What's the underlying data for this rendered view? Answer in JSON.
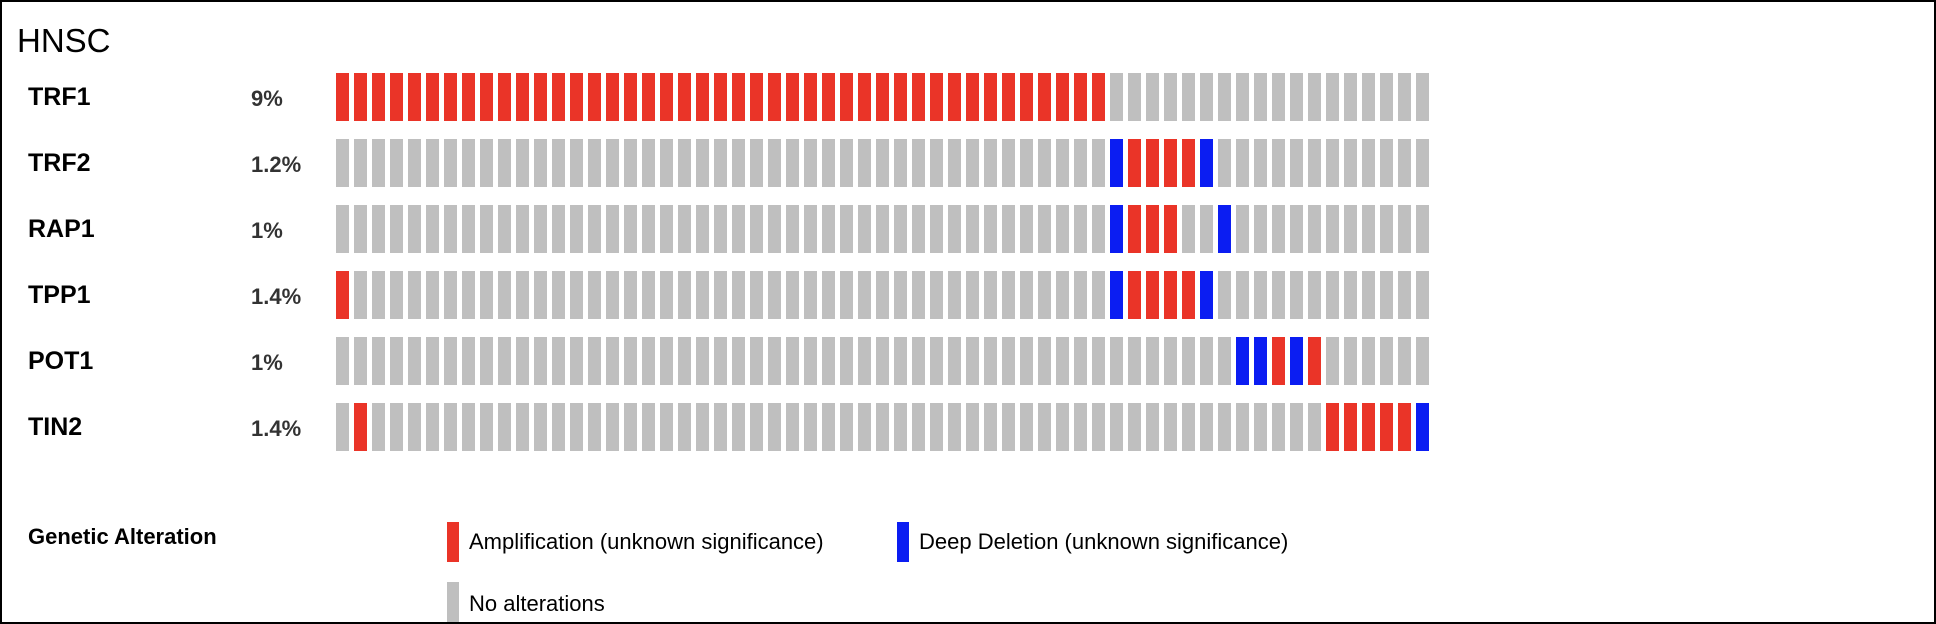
{
  "chart_data": {
    "type": "oncoprint",
    "title": "HNSC",
    "colors": {
      "amp": "#ea3428",
      "del": "#0b1df2",
      "none": "#bfbfbf"
    },
    "genes": [
      {
        "name": "TRF1",
        "percent": "9%",
        "alterations": {
          "amp": [
            0,
            1,
            2,
            3,
            4,
            5,
            6,
            7,
            8,
            9,
            10,
            11,
            12,
            13,
            14,
            15,
            16,
            17,
            18,
            19,
            20,
            21,
            22,
            23,
            24,
            25,
            26,
            27,
            28,
            29,
            30,
            31,
            32,
            33,
            34,
            35,
            36,
            37,
            38,
            39,
            40,
            41,
            42
          ],
          "del": []
        }
      },
      {
        "name": "TRF2",
        "percent": "1.2%",
        "alterations": {
          "amp": [
            44,
            45,
            46,
            47
          ],
          "del": [
            43,
            48
          ]
        }
      },
      {
        "name": "RAP1",
        "percent": "1%",
        "alterations": {
          "amp": [
            44,
            45,
            46
          ],
          "del": [
            43,
            49
          ]
        }
      },
      {
        "name": "TPP1",
        "percent": "1.4%",
        "alterations": {
          "amp": [
            0,
            44,
            45,
            46,
            47
          ],
          "del": [
            43,
            48
          ]
        }
      },
      {
        "name": "POT1",
        "percent": "1%",
        "alterations": {
          "amp": [
            52,
            54
          ],
          "del": [
            50,
            51,
            53
          ]
        }
      },
      {
        "name": "TIN2",
        "percent": "1.4%",
        "alterations": {
          "amp": [
            1,
            55,
            56,
            57,
            58,
            59
          ],
          "del": [
            60
          ]
        }
      }
    ],
    "sample_count": 61,
    "legend": {
      "title": "Genetic Alteration",
      "items": [
        {
          "key": "amp",
          "label": "Amplification (unknown significance)"
        },
        {
          "key": "del",
          "label": "Deep Deletion (unknown significance)"
        },
        {
          "key": "none",
          "label": "No alterations"
        }
      ]
    }
  }
}
